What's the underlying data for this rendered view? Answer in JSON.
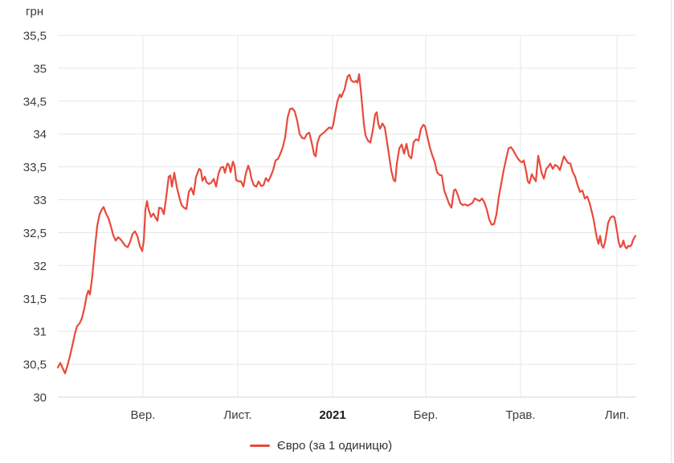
{
  "chart_data": {
    "type": "line",
    "title": "",
    "unit_label": "грн",
    "ylabel": "грн",
    "xlabel": "",
    "grid": true,
    "ylim": [
      30,
      35.5
    ],
    "y_ticks": [
      {
        "label": "35,5",
        "value": 35.5
      },
      {
        "label": "35",
        "value": 35.0
      },
      {
        "label": "34,5",
        "value": 34.5
      },
      {
        "label": "34",
        "value": 34.0
      },
      {
        "label": "33,5",
        "value": 33.5
      },
      {
        "label": "33",
        "value": 33.0
      },
      {
        "label": "32,5",
        "value": 32.5
      },
      {
        "label": "32",
        "value": 32.0
      },
      {
        "label": "31,5",
        "value": 31.5
      },
      {
        "label": "31",
        "value": 31.0
      },
      {
        "label": "30,5",
        "value": 30.5
      },
      {
        "label": "30",
        "value": 30.0
      }
    ],
    "x_ticks": [
      {
        "label": "Вер.",
        "t": 0.1472,
        "bold": false
      },
      {
        "label": "Лист.",
        "t": 0.3111,
        "bold": false
      },
      {
        "label": "2021",
        "t": 0.475,
        "bold": true
      },
      {
        "label": "Бер.",
        "t": 0.6361,
        "bold": false
      },
      {
        "label": "Трав.",
        "t": 0.8,
        "bold": false
      },
      {
        "label": "Лип.",
        "t": 0.9667,
        "bold": false
      }
    ],
    "legend": {
      "position": "bottom",
      "label": "Євро (за 1 одиницю)"
    },
    "colors": {
      "line": "#e84a3c",
      "grid": "#e7e7e7",
      "axis": "#d6d6d6",
      "page_edge": "#e4e4e4"
    },
    "series": [
      {
        "name": "Євро (за 1 одиницю)",
        "color": "#e84a3c",
        "points": [
          [
            0.0,
            30.45
          ],
          [
            0.0042,
            30.52
          ],
          [
            0.0083,
            30.44
          ],
          [
            0.0125,
            30.36
          ],
          [
            0.0167,
            30.48
          ],
          [
            0.0208,
            30.62
          ],
          [
            0.025,
            30.78
          ],
          [
            0.0292,
            30.95
          ],
          [
            0.0333,
            31.08
          ],
          [
            0.0375,
            31.12
          ],
          [
            0.0417,
            31.2
          ],
          [
            0.0458,
            31.35
          ],
          [
            0.05,
            31.55
          ],
          [
            0.0528,
            31.62
          ],
          [
            0.0556,
            31.56
          ],
          [
            0.0597,
            31.85
          ],
          [
            0.0639,
            32.25
          ],
          [
            0.0681,
            32.6
          ],
          [
            0.0722,
            32.78
          ],
          [
            0.0764,
            32.86
          ],
          [
            0.0792,
            32.89
          ],
          [
            0.0833,
            32.79
          ],
          [
            0.0875,
            32.72
          ],
          [
            0.0917,
            32.6
          ],
          [
            0.0958,
            32.46
          ],
          [
            0.1,
            32.38
          ],
          [
            0.1042,
            32.43
          ],
          [
            0.1083,
            32.4
          ],
          [
            0.1125,
            32.35
          ],
          [
            0.1167,
            32.3
          ],
          [
            0.1208,
            32.28
          ],
          [
            0.125,
            32.36
          ],
          [
            0.1292,
            32.48
          ],
          [
            0.1333,
            32.52
          ],
          [
            0.1375,
            32.45
          ],
          [
            0.1417,
            32.3
          ],
          [
            0.1458,
            32.22
          ],
          [
            0.1486,
            32.38
          ],
          [
            0.1514,
            32.85
          ],
          [
            0.1542,
            32.98
          ],
          [
            0.1569,
            32.85
          ],
          [
            0.1611,
            32.74
          ],
          [
            0.1653,
            32.79
          ],
          [
            0.1694,
            32.72
          ],
          [
            0.1722,
            32.68
          ],
          [
            0.175,
            32.88
          ],
          [
            0.1792,
            32.87
          ],
          [
            0.1833,
            32.78
          ],
          [
            0.1875,
            33.05
          ],
          [
            0.1917,
            33.35
          ],
          [
            0.1944,
            33.37
          ],
          [
            0.1972,
            33.2
          ],
          [
            0.2014,
            33.41
          ],
          [
            0.2056,
            33.2
          ],
          [
            0.2097,
            33.05
          ],
          [
            0.2139,
            32.92
          ],
          [
            0.2181,
            32.88
          ],
          [
            0.2222,
            32.86
          ],
          [
            0.2264,
            33.12
          ],
          [
            0.2306,
            33.18
          ],
          [
            0.2347,
            33.08
          ],
          [
            0.2389,
            33.35
          ],
          [
            0.2444,
            33.47
          ],
          [
            0.2472,
            33.45
          ],
          [
            0.25,
            33.29
          ],
          [
            0.2542,
            33.35
          ],
          [
            0.2569,
            33.27
          ],
          [
            0.2611,
            33.24
          ],
          [
            0.2653,
            33.26
          ],
          [
            0.2694,
            33.32
          ],
          [
            0.2736,
            33.2
          ],
          [
            0.2778,
            33.4
          ],
          [
            0.2819,
            33.49
          ],
          [
            0.2861,
            33.5
          ],
          [
            0.2889,
            33.41
          ],
          [
            0.2931,
            33.55
          ],
          [
            0.2958,
            33.53
          ],
          [
            0.2986,
            33.42
          ],
          [
            0.3028,
            33.58
          ],
          [
            0.3056,
            33.51
          ],
          [
            0.3083,
            33.3
          ],
          [
            0.3125,
            33.28
          ],
          [
            0.3167,
            33.28
          ],
          [
            0.3208,
            33.2
          ],
          [
            0.325,
            33.4
          ],
          [
            0.3292,
            33.52
          ],
          [
            0.3319,
            33.45
          ],
          [
            0.3347,
            33.32
          ],
          [
            0.3389,
            33.22
          ],
          [
            0.3431,
            33.2
          ],
          [
            0.3472,
            33.28
          ],
          [
            0.3514,
            33.21
          ],
          [
            0.3556,
            33.22
          ],
          [
            0.3597,
            33.33
          ],
          [
            0.3639,
            33.28
          ],
          [
            0.3681,
            33.36
          ],
          [
            0.3722,
            33.45
          ],
          [
            0.3764,
            33.6
          ],
          [
            0.3806,
            33.62
          ],
          [
            0.3847,
            33.7
          ],
          [
            0.3889,
            33.8
          ],
          [
            0.3931,
            33.95
          ],
          [
            0.3972,
            34.25
          ],
          [
            0.4014,
            34.38
          ],
          [
            0.4056,
            34.39
          ],
          [
            0.4097,
            34.34
          ],
          [
            0.4139,
            34.2
          ],
          [
            0.4181,
            34.0
          ],
          [
            0.4222,
            33.94
          ],
          [
            0.4264,
            33.93
          ],
          [
            0.4306,
            34.0
          ],
          [
            0.4347,
            34.02
          ],
          [
            0.4389,
            33.87
          ],
          [
            0.4431,
            33.69
          ],
          [
            0.4458,
            33.66
          ],
          [
            0.4486,
            33.86
          ],
          [
            0.4528,
            33.97
          ],
          [
            0.4569,
            34.0
          ],
          [
            0.4611,
            34.03
          ],
          [
            0.4653,
            34.07
          ],
          [
            0.4694,
            34.1
          ],
          [
            0.4736,
            34.08
          ],
          [
            0.4764,
            34.15
          ],
          [
            0.4792,
            34.3
          ],
          [
            0.4833,
            34.5
          ],
          [
            0.4875,
            34.6
          ],
          [
            0.4903,
            34.56
          ],
          [
            0.4931,
            34.63
          ],
          [
            0.4958,
            34.68
          ],
          [
            0.4986,
            34.8
          ],
          [
            0.5014,
            34.88
          ],
          [
            0.5042,
            34.9
          ],
          [
            0.5069,
            34.82
          ],
          [
            0.5097,
            34.8
          ],
          [
            0.5125,
            34.79
          ],
          [
            0.5153,
            34.81
          ],
          [
            0.5181,
            34.78
          ],
          [
            0.5208,
            34.91
          ],
          [
            0.5236,
            34.68
          ],
          [
            0.5264,
            34.42
          ],
          [
            0.5292,
            34.15
          ],
          [
            0.5319,
            33.98
          ],
          [
            0.5361,
            33.9
          ],
          [
            0.5403,
            33.87
          ],
          [
            0.5444,
            34.05
          ],
          [
            0.5486,
            34.3
          ],
          [
            0.5514,
            34.33
          ],
          [
            0.5542,
            34.15
          ],
          [
            0.5569,
            34.08
          ],
          [
            0.5611,
            34.16
          ],
          [
            0.5653,
            34.1
          ],
          [
            0.5681,
            33.94
          ],
          [
            0.5722,
            33.7
          ],
          [
            0.5764,
            33.45
          ],
          [
            0.5806,
            33.3
          ],
          [
            0.5833,
            33.28
          ],
          [
            0.5861,
            33.55
          ],
          [
            0.5903,
            33.78
          ],
          [
            0.5944,
            33.84
          ],
          [
            0.5986,
            33.7
          ],
          [
            0.6028,
            33.85
          ],
          [
            0.6069,
            33.67
          ],
          [
            0.6111,
            33.63
          ],
          [
            0.6153,
            33.88
          ],
          [
            0.6194,
            33.92
          ],
          [
            0.6236,
            33.9
          ],
          [
            0.6278,
            34.08
          ],
          [
            0.6319,
            34.14
          ],
          [
            0.6347,
            34.12
          ],
          [
            0.6389,
            33.96
          ],
          [
            0.6431,
            33.8
          ],
          [
            0.6472,
            33.68
          ],
          [
            0.6514,
            33.58
          ],
          [
            0.6556,
            33.42
          ],
          [
            0.6597,
            33.38
          ],
          [
            0.6639,
            33.37
          ],
          [
            0.6681,
            33.14
          ],
          [
            0.6722,
            33.04
          ],
          [
            0.6764,
            32.94
          ],
          [
            0.6806,
            32.88
          ],
          [
            0.6847,
            33.14
          ],
          [
            0.6875,
            33.16
          ],
          [
            0.6917,
            33.07
          ],
          [
            0.6958,
            32.95
          ],
          [
            0.7,
            32.92
          ],
          [
            0.7042,
            32.93
          ],
          [
            0.7083,
            32.91
          ],
          [
            0.7125,
            32.93
          ],
          [
            0.7167,
            32.95
          ],
          [
            0.7208,
            33.02
          ],
          [
            0.725,
            33.0
          ],
          [
            0.7292,
            32.98
          ],
          [
            0.7333,
            33.02
          ],
          [
            0.7375,
            32.96
          ],
          [
            0.7417,
            32.85
          ],
          [
            0.7458,
            32.7
          ],
          [
            0.75,
            32.62
          ],
          [
            0.7542,
            32.63
          ],
          [
            0.7583,
            32.78
          ],
          [
            0.7625,
            33.05
          ],
          [
            0.7667,
            33.25
          ],
          [
            0.7708,
            33.45
          ],
          [
            0.775,
            33.62
          ],
          [
            0.7792,
            33.78
          ],
          [
            0.7833,
            33.8
          ],
          [
            0.7875,
            33.75
          ],
          [
            0.7917,
            33.68
          ],
          [
            0.7958,
            33.62
          ],
          [
            0.8,
            33.58
          ],
          [
            0.8028,
            33.57
          ],
          [
            0.8056,
            33.6
          ],
          [
            0.8097,
            33.43
          ],
          [
            0.8125,
            33.28
          ],
          [
            0.8153,
            33.25
          ],
          [
            0.8194,
            33.39
          ],
          [
            0.8222,
            33.34
          ],
          [
            0.8264,
            33.28
          ],
          [
            0.8306,
            33.67
          ],
          [
            0.8333,
            33.55
          ],
          [
            0.8361,
            33.42
          ],
          [
            0.8403,
            33.32
          ],
          [
            0.8444,
            33.47
          ],
          [
            0.8486,
            33.51
          ],
          [
            0.8514,
            33.55
          ],
          [
            0.8556,
            33.47
          ],
          [
            0.8597,
            33.53
          ],
          [
            0.8639,
            33.51
          ],
          [
            0.8681,
            33.45
          ],
          [
            0.8722,
            33.58
          ],
          [
            0.875,
            33.66
          ],
          [
            0.8792,
            33.6
          ],
          [
            0.8819,
            33.56
          ],
          [
            0.8861,
            33.55
          ],
          [
            0.8903,
            33.42
          ],
          [
            0.8944,
            33.35
          ],
          [
            0.8986,
            33.22
          ],
          [
            0.9028,
            33.12
          ],
          [
            0.9069,
            33.14
          ],
          [
            0.9111,
            33.02
          ],
          [
            0.9153,
            33.05
          ],
          [
            0.9194,
            32.95
          ],
          [
            0.9222,
            32.85
          ],
          [
            0.9264,
            32.7
          ],
          [
            0.9292,
            32.55
          ],
          [
            0.9319,
            32.42
          ],
          [
            0.9347,
            32.33
          ],
          [
            0.9375,
            32.45
          ],
          [
            0.9403,
            32.31
          ],
          [
            0.9431,
            32.27
          ],
          [
            0.9458,
            32.35
          ],
          [
            0.9486,
            32.49
          ],
          [
            0.9514,
            32.65
          ],
          [
            0.9556,
            32.73
          ],
          [
            0.9597,
            32.75
          ],
          [
            0.9625,
            32.73
          ],
          [
            0.9667,
            32.53
          ],
          [
            0.9694,
            32.37
          ],
          [
            0.9722,
            32.28
          ],
          [
            0.975,
            32.3
          ],
          [
            0.9778,
            32.38
          ],
          [
            0.9806,
            32.29
          ],
          [
            0.9833,
            32.26
          ],
          [
            0.9861,
            32.3
          ],
          [
            0.9889,
            32.29
          ],
          [
            0.9917,
            32.31
          ],
          [
            0.9944,
            32.39
          ],
          [
            0.9972,
            32.43
          ],
          [
            0.9986,
            32.45
          ]
        ]
      }
    ]
  }
}
